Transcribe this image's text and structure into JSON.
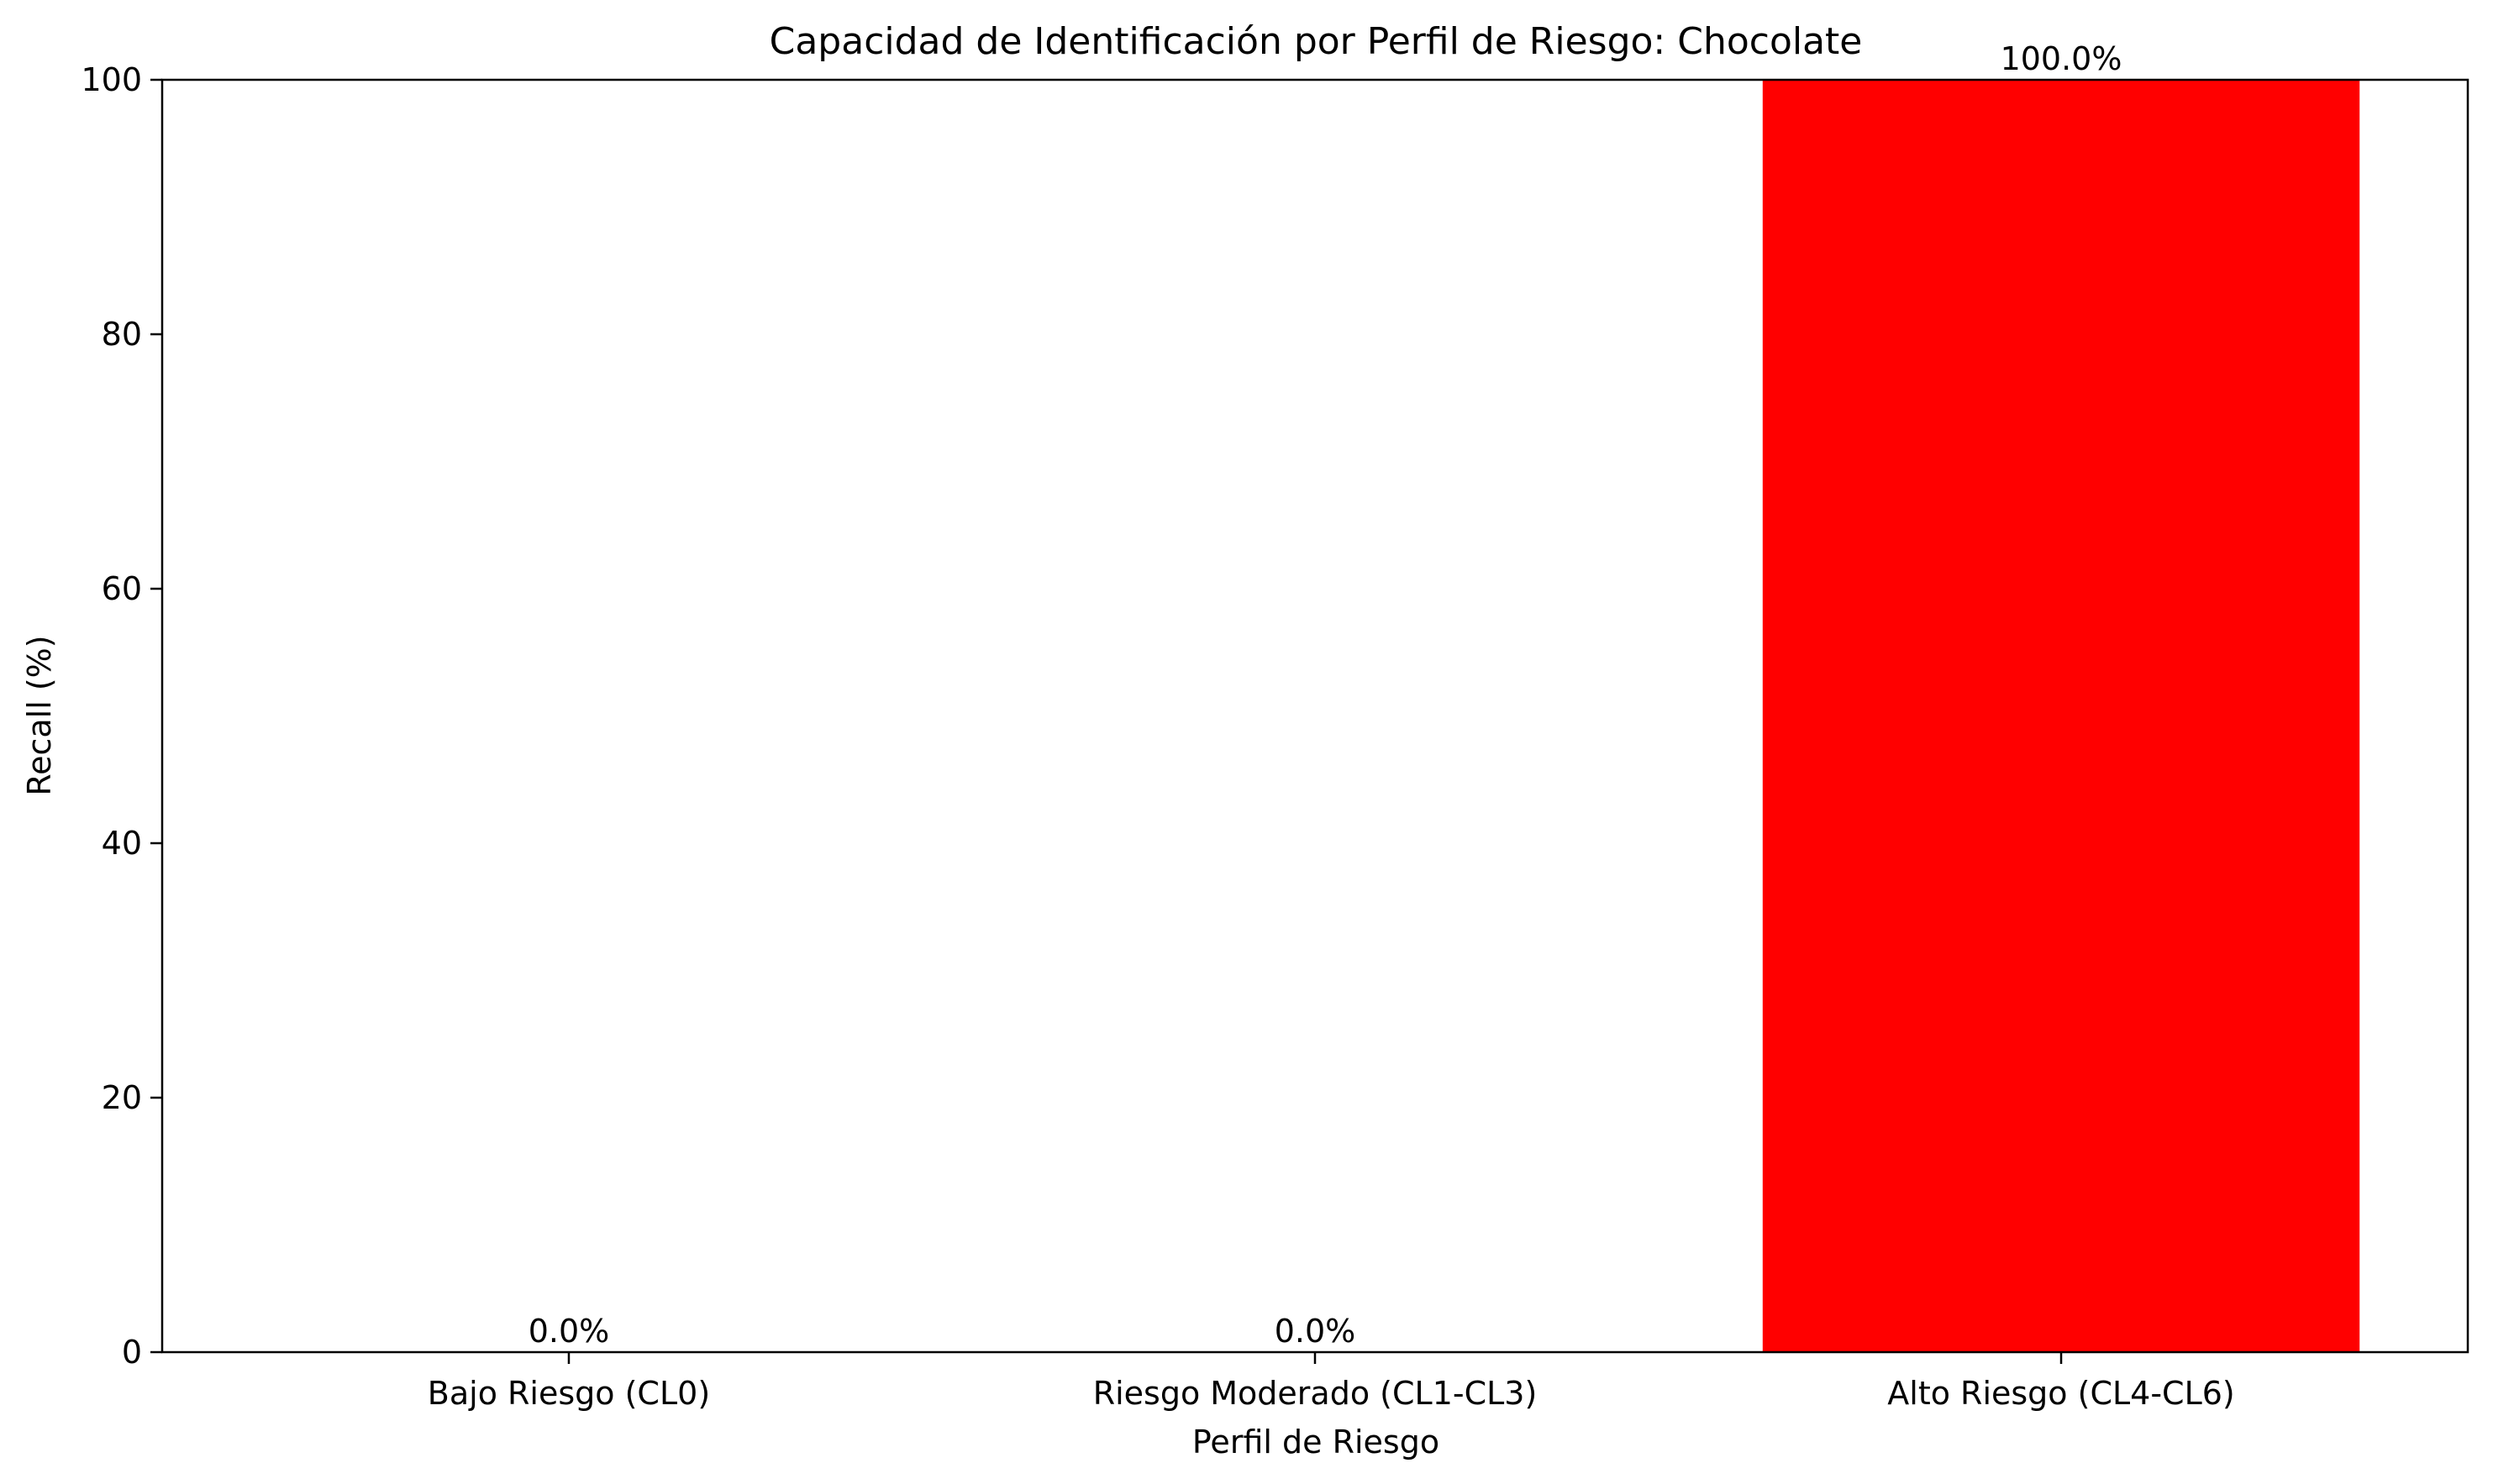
{
  "chart_data": {
    "type": "bar",
    "title": "Capacidad de Identificación por Perfil de Riesgo: Chocolate",
    "xlabel": "Perfil de Riesgo",
    "ylabel": "Recall (%)",
    "categories": [
      "Bajo Riesgo (CL0)",
      "Riesgo Moderado (CL1-CL3)",
      "Alto Riesgo (CL4-CL6)"
    ],
    "values": [
      0.0,
      0.0,
      100.0
    ],
    "data_labels": [
      "0.0%",
      "0.0%",
      "100.0%"
    ],
    "bar_color": "#ff0000",
    "ylim": [
      0,
      100
    ],
    "yticks": [
      0,
      20,
      40,
      60,
      80,
      100
    ],
    "grid": false,
    "legend": "none"
  }
}
